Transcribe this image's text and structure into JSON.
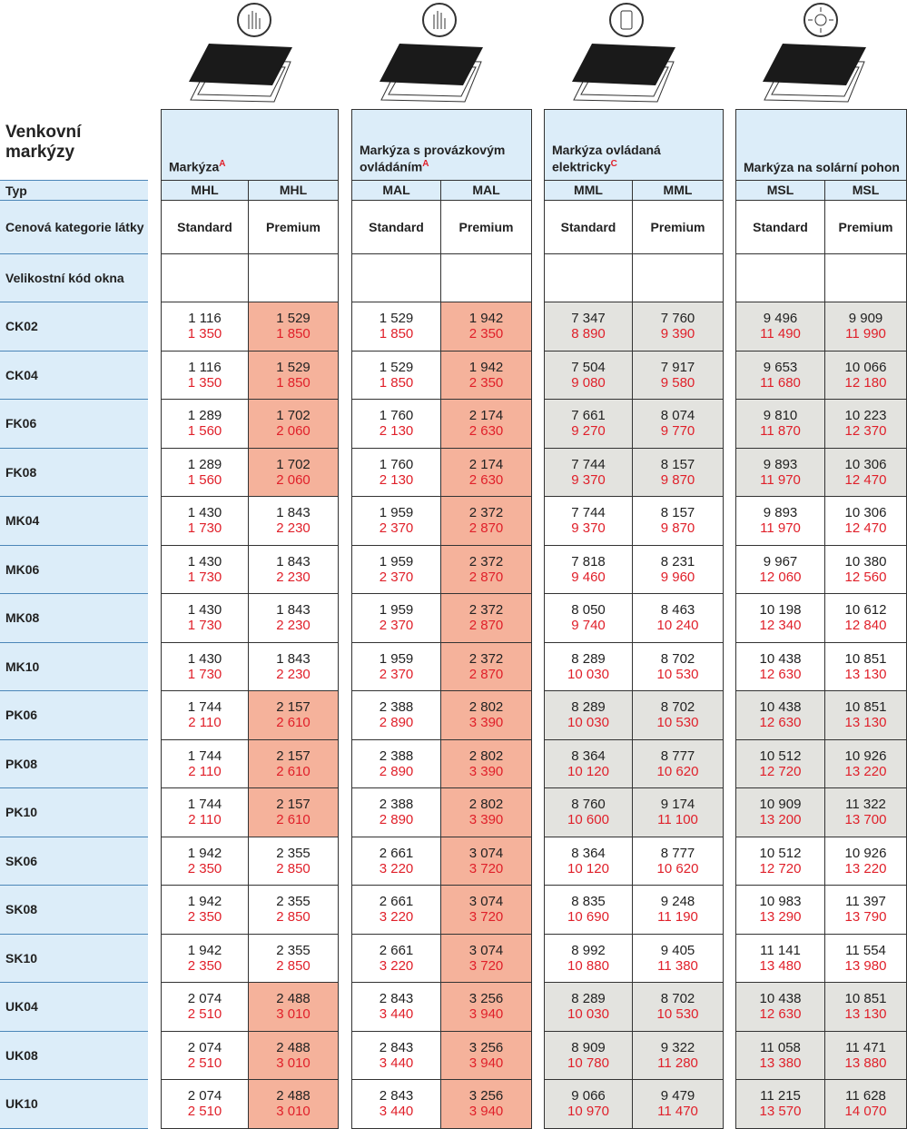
{
  "title": "Venkovní markýzy",
  "row_labels": {
    "type": "Typ",
    "fabric": "Cenová kategorie látky",
    "size": "Velikostní kód okna"
  },
  "groups": [
    {
      "title": "Markýza",
      "note": "A",
      "columns": [
        {
          "type": "MHL",
          "fabric": "Standard"
        },
        {
          "type": "MHL",
          "fabric": "Premium"
        }
      ]
    },
    {
      "title": "Markýza s provázkovým ovládáním",
      "note": "A",
      "columns": [
        {
          "type": "MAL",
          "fabric": "Standard"
        },
        {
          "type": "MAL",
          "fabric": "Premium"
        }
      ]
    },
    {
      "title": "Markýza ovládaná elektricky",
      "note": "C",
      "columns": [
        {
          "type": "MML",
          "fabric": "Standard"
        },
        {
          "type": "MML",
          "fabric": "Premium"
        }
      ]
    },
    {
      "title": "Markýza na solární pohon",
      "columns": [
        {
          "type": "MSL",
          "fabric": "Standard"
        },
        {
          "type": "MSL",
          "fabric": "Premium"
        }
      ]
    }
  ],
  "rows": [
    {
      "code": "CK02",
      "highlight": true,
      "cells": [
        [
          "1 116",
          "1 350"
        ],
        [
          "1 529",
          "1 850"
        ],
        [
          "1 529",
          "1 850"
        ],
        [
          "1 942",
          "2 350"
        ],
        [
          "7 347",
          "8 890"
        ],
        [
          "7 760",
          "9 390"
        ],
        [
          "9 496",
          "11 490"
        ],
        [
          "9 909",
          "11 990"
        ]
      ]
    },
    {
      "code": "CK04",
      "highlight": true,
      "cells": [
        [
          "1 116",
          "1 350"
        ],
        [
          "1 529",
          "1 850"
        ],
        [
          "1 529",
          "1 850"
        ],
        [
          "1 942",
          "2 350"
        ],
        [
          "7 504",
          "9 080"
        ],
        [
          "7 917",
          "9 580"
        ],
        [
          "9 653",
          "11 680"
        ],
        [
          "10 066",
          "12 180"
        ]
      ]
    },
    {
      "code": "FK06",
      "highlight": true,
      "cells": [
        [
          "1 289",
          "1 560"
        ],
        [
          "1 702",
          "2 060"
        ],
        [
          "1 760",
          "2 130"
        ],
        [
          "2 174",
          "2 630"
        ],
        [
          "7 661",
          "9 270"
        ],
        [
          "8 074",
          "9 770"
        ],
        [
          "9 810",
          "11 870"
        ],
        [
          "10 223",
          "12 370"
        ]
      ]
    },
    {
      "code": "FK08",
      "highlight": true,
      "cells": [
        [
          "1 289",
          "1 560"
        ],
        [
          "1 702",
          "2 060"
        ],
        [
          "1 760",
          "2 130"
        ],
        [
          "2 174",
          "2 630"
        ],
        [
          "7 744",
          "9 370"
        ],
        [
          "8 157",
          "9 870"
        ],
        [
          "9 893",
          "11 970"
        ],
        [
          "10 306",
          "12 470"
        ]
      ]
    },
    {
      "code": "MK04",
      "highlight": false,
      "cells": [
        [
          "1 430",
          "1 730"
        ],
        [
          "1 843",
          "2 230"
        ],
        [
          "1 959",
          "2 370"
        ],
        [
          "2 372",
          "2 870"
        ],
        [
          "7 744",
          "9 370"
        ],
        [
          "8 157",
          "9 870"
        ],
        [
          "9 893",
          "11 970"
        ],
        [
          "10 306",
          "12 470"
        ]
      ]
    },
    {
      "code": "MK06",
      "highlight": false,
      "cells": [
        [
          "1 430",
          "1 730"
        ],
        [
          "1 843",
          "2 230"
        ],
        [
          "1 959",
          "2 370"
        ],
        [
          "2 372",
          "2 870"
        ],
        [
          "7 818",
          "9 460"
        ],
        [
          "8 231",
          "9 960"
        ],
        [
          "9 967",
          "12 060"
        ],
        [
          "10 380",
          "12 560"
        ]
      ]
    },
    {
      "code": "MK08",
      "highlight": false,
      "cells": [
        [
          "1 430",
          "1 730"
        ],
        [
          "1 843",
          "2 230"
        ],
        [
          "1 959",
          "2 370"
        ],
        [
          "2 372",
          "2 870"
        ],
        [
          "8 050",
          "9 740"
        ],
        [
          "8 463",
          "10 240"
        ],
        [
          "10 198",
          "12 340"
        ],
        [
          "10 612",
          "12 840"
        ]
      ]
    },
    {
      "code": "MK10",
      "highlight": false,
      "cells": [
        [
          "1 430",
          "1 730"
        ],
        [
          "1 843",
          "2 230"
        ],
        [
          "1 959",
          "2 370"
        ],
        [
          "2 372",
          "2 870"
        ],
        [
          "8 289",
          "10 030"
        ],
        [
          "8 702",
          "10 530"
        ],
        [
          "10 438",
          "12 630"
        ],
        [
          "10 851",
          "13 130"
        ]
      ]
    },
    {
      "code": "PK06",
      "highlight": true,
      "cells": [
        [
          "1 744",
          "2 110"
        ],
        [
          "2 157",
          "2 610"
        ],
        [
          "2 388",
          "2 890"
        ],
        [
          "2 802",
          "3 390"
        ],
        [
          "8 289",
          "10 030"
        ],
        [
          "8 702",
          "10 530"
        ],
        [
          "10 438",
          "12 630"
        ],
        [
          "10 851",
          "13 130"
        ]
      ]
    },
    {
      "code": "PK08",
      "highlight": true,
      "cells": [
        [
          "1 744",
          "2 110"
        ],
        [
          "2 157",
          "2 610"
        ],
        [
          "2 388",
          "2 890"
        ],
        [
          "2 802",
          "3 390"
        ],
        [
          "8 364",
          "10 120"
        ],
        [
          "8 777",
          "10 620"
        ],
        [
          "10 512",
          "12 720"
        ],
        [
          "10 926",
          "13 220"
        ]
      ]
    },
    {
      "code": "PK10",
      "highlight": true,
      "cells": [
        [
          "1 744",
          "2 110"
        ],
        [
          "2 157",
          "2 610"
        ],
        [
          "2 388",
          "2 890"
        ],
        [
          "2 802",
          "3 390"
        ],
        [
          "8 760",
          "10 600"
        ],
        [
          "9 174",
          "11 100"
        ],
        [
          "10 909",
          "13 200"
        ],
        [
          "11 322",
          "13 700"
        ]
      ]
    },
    {
      "code": "SK06",
      "highlight": false,
      "cells": [
        [
          "1 942",
          "2 350"
        ],
        [
          "2 355",
          "2 850"
        ],
        [
          "2 661",
          "3 220"
        ],
        [
          "3 074",
          "3 720"
        ],
        [
          "8 364",
          "10 120"
        ],
        [
          "8 777",
          "10 620"
        ],
        [
          "10 512",
          "12 720"
        ],
        [
          "10 926",
          "13 220"
        ]
      ]
    },
    {
      "code": "SK08",
      "highlight": false,
      "cells": [
        [
          "1 942",
          "2 350"
        ],
        [
          "2 355",
          "2 850"
        ],
        [
          "2 661",
          "3 220"
        ],
        [
          "3 074",
          "3 720"
        ],
        [
          "8 835",
          "10 690"
        ],
        [
          "9 248",
          "11 190"
        ],
        [
          "10 983",
          "13 290"
        ],
        [
          "11 397",
          "13 790"
        ]
      ]
    },
    {
      "code": "SK10",
      "highlight": false,
      "cells": [
        [
          "1 942",
          "2 350"
        ],
        [
          "2 355",
          "2 850"
        ],
        [
          "2 661",
          "3 220"
        ],
        [
          "3 074",
          "3 720"
        ],
        [
          "8 992",
          "10 880"
        ],
        [
          "9 405",
          "11 380"
        ],
        [
          "11 141",
          "13 480"
        ],
        [
          "11 554",
          "13 980"
        ]
      ]
    },
    {
      "code": "UK04",
      "highlight": true,
      "cells": [
        [
          "2 074",
          "2 510"
        ],
        [
          "2 488",
          "3 010"
        ],
        [
          "2 843",
          "3 440"
        ],
        [
          "3 256",
          "3 940"
        ],
        [
          "8 289",
          "10 030"
        ],
        [
          "8 702",
          "10 530"
        ],
        [
          "10 438",
          "12 630"
        ],
        [
          "10 851",
          "13 130"
        ]
      ]
    },
    {
      "code": "UK08",
      "highlight": true,
      "cells": [
        [
          "2 074",
          "2 510"
        ],
        [
          "2 488",
          "3 010"
        ],
        [
          "2 843",
          "3 440"
        ],
        [
          "3 256",
          "3 940"
        ],
        [
          "8 909",
          "10 780"
        ],
        [
          "9 322",
          "11 280"
        ],
        [
          "11 058",
          "13 380"
        ],
        [
          "11 471",
          "13 880"
        ]
      ]
    },
    {
      "code": "UK10",
      "highlight": true,
      "cells": [
        [
          "2 074",
          "2 510"
        ],
        [
          "2 488",
          "3 010"
        ],
        [
          "2 843",
          "3 440"
        ],
        [
          "3 256",
          "3 940"
        ],
        [
          "9 066",
          "10 970"
        ],
        [
          "9 479",
          "11 470"
        ],
        [
          "11 215",
          "13 570"
        ],
        [
          "11 628",
          "14 070"
        ]
      ]
    }
  ]
}
